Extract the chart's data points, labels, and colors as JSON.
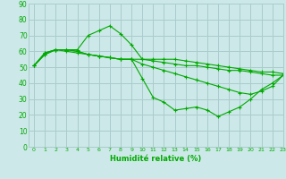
{
  "xlabel": "Humidité relative (%)",
  "bg_color": "#cce8e8",
  "grid_color": "#aacccc",
  "line_color": "#00aa00",
  "x": [
    0,
    1,
    2,
    3,
    4,
    5,
    6,
    7,
    8,
    9,
    10,
    11,
    12,
    13,
    14,
    15,
    16,
    17,
    18,
    19,
    20,
    21,
    22,
    23
  ],
  "series": [
    [
      51,
      58,
      61,
      61,
      61,
      70,
      73,
      76,
      71,
      64,
      55,
      55,
      55,
      55,
      54,
      53,
      52,
      51,
      50,
      49,
      48,
      47,
      47,
      46
    ],
    [
      51,
      58,
      61,
      61,
      60,
      58,
      57,
      56,
      55,
      55,
      43,
      31,
      28,
      23,
      24,
      25,
      23,
      19,
      22,
      25,
      30,
      36,
      40,
      45
    ],
    [
      51,
      59,
      61,
      61,
      60,
      58,
      57,
      56,
      55,
      55,
      52,
      50,
      48,
      46,
      44,
      42,
      40,
      38,
      36,
      34,
      33,
      35,
      38,
      45
    ],
    [
      51,
      59,
      61,
      60,
      59,
      58,
      57,
      56,
      55,
      55,
      55,
      54,
      53,
      52,
      51,
      51,
      50,
      49,
      48,
      48,
      47,
      46,
      45,
      45
    ]
  ],
  "ylim": [
    0,
    90
  ],
  "xlim": [
    -0.5,
    23
  ],
  "yticks": [
    0,
    10,
    20,
    30,
    40,
    50,
    60,
    70,
    80,
    90
  ],
  "xticks": [
    0,
    1,
    2,
    3,
    4,
    5,
    6,
    7,
    8,
    9,
    10,
    11,
    12,
    13,
    14,
    15,
    16,
    17,
    18,
    19,
    20,
    21,
    22,
    23
  ]
}
